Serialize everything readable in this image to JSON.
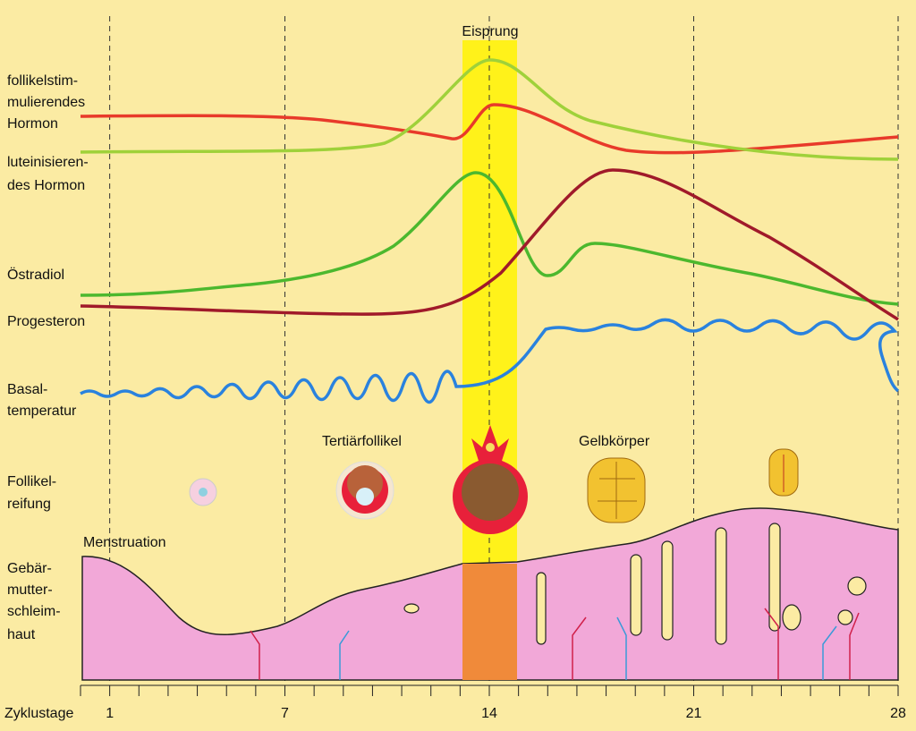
{
  "marker_label": "Eisprung",
  "row_labels": [
    [
      "follikelstim-",
      "mulierendes",
      "Hormon"
    ],
    [
      "luteinisieren-",
      "des Hormon"
    ],
    [
      "Östradiol"
    ],
    [
      "Progesteron"
    ],
    [
      "Basal-",
      "temperatur"
    ],
    [
      "Follikel-",
      "reifung"
    ],
    [
      "Gebär-",
      "mutter-",
      "schleim-",
      "haut"
    ]
  ],
  "stage_labels": [
    "Tertiärfollikel",
    "Gelbkörper",
    "Menstruation"
  ],
  "axis": {
    "label": "Zyklustage",
    "ticks": [
      1,
      7,
      14,
      21,
      28
    ]
  }
}
